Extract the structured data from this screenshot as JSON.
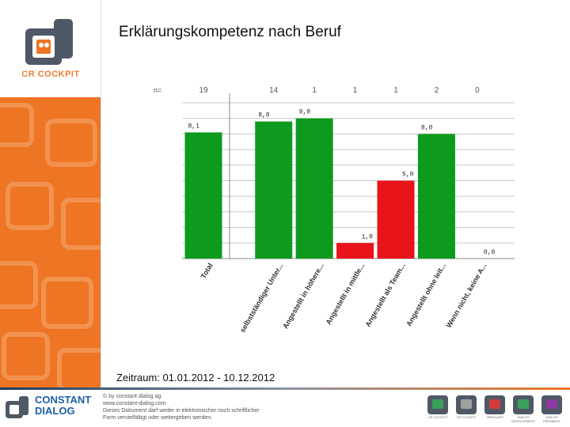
{
  "header": {
    "logo_text": "CR COCKPIT"
  },
  "chart_data": {
    "type": "bar",
    "title": "Erklärungskompetenz nach Beruf",
    "n_label": "n=",
    "categories": [
      "Total",
      "selbstständiger Unter...",
      "Angestellt in höhere...",
      "Angestellt in mittle...",
      "Angestellt als Team...",
      "Angestellt ohne leit...",
      "Wenn nicht, keine A..."
    ],
    "n_values": [
      "19",
      "14",
      "1",
      "1",
      "1",
      "2",
      "0"
    ],
    "values": [
      8.1,
      8.8,
      9.0,
      1.0,
      5.0,
      8.0,
      0.0
    ],
    "value_labels": [
      "8,1",
      "8,8",
      "9,0",
      "1,0",
      "5,0",
      "8,0",
      "0,0"
    ],
    "colors": [
      "#0e9a1d",
      "#0e9a1d",
      "#0e9a1d",
      "#e9131a",
      "#e9131a",
      "#0e9a1d",
      "#0e9a1d"
    ],
    "ylim": [
      0,
      10
    ],
    "grid": true
  },
  "period_text": "Zeitraum: 01.01.2012 - 10.12.2012",
  "footer": {
    "brand_line1": "CONSTANT",
    "brand_line2": "DIALOG",
    "copyright_lines": [
      "© by constant dialog ag",
      "www.constant-dialog.com",
      "Dieses Dokument darf weder in elektronischer noch schriftlicher",
      "Form vervielfältigt oder weitergeben werden."
    ],
    "icon_labels": [
      "CR COCKPIT",
      "CR COCKPIT",
      "VERKAUFS",
      "DIALOG DEVELOPMENT",
      "DIALOG FEEDBACK"
    ],
    "icon_colors": [
      "#3aa05a",
      "#a0a0a0",
      "#d23c3c",
      "#3aa05a",
      "#8a3aa0"
    ]
  }
}
